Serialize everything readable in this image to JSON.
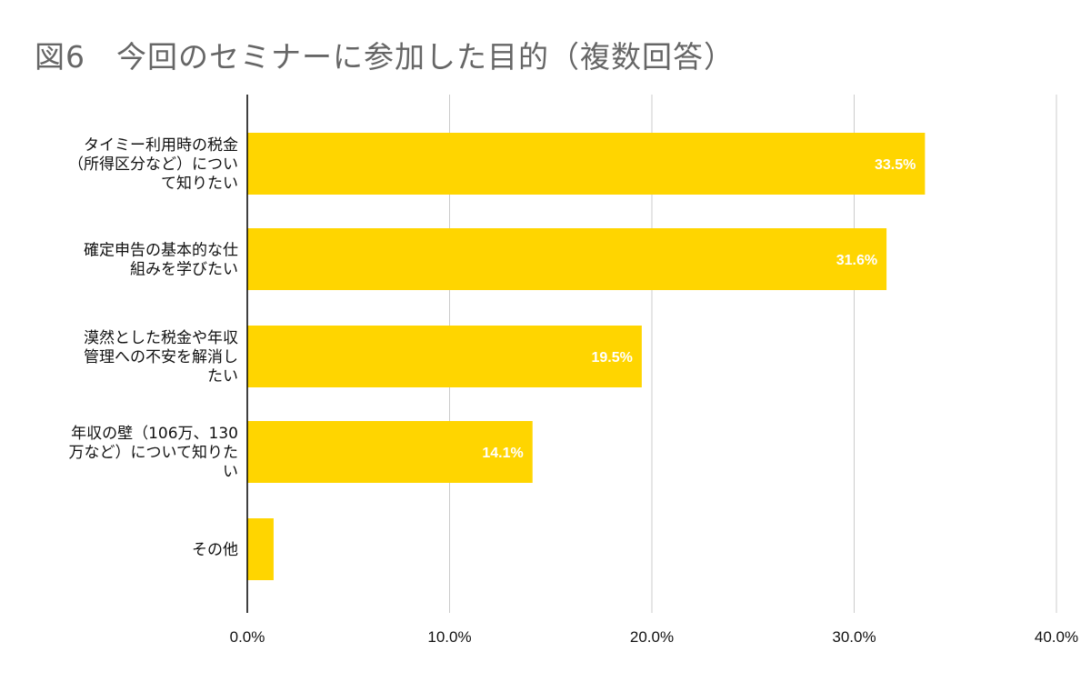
{
  "chart_data": {
    "type": "bar",
    "orientation": "horizontal",
    "title": "図6　今回のセミナーに参加した目的（複数回答）",
    "categories": [
      "タイミー利用時の税金（所得区分など）について知りたい",
      "確定申告の基本的な仕組みを学びたい",
      "漠然とした税金や年収管理への不安を解消したい",
      "年収の壁（106万、130万など）について知りたい",
      "その他"
    ],
    "category_lines": [
      [
        "タイミー利用時の税金",
        "（所得区分など）につい",
        "て知りたい"
      ],
      [
        "確定申告の基本的な仕",
        "組みを学びたい"
      ],
      [
        "漠然とした税金や年収",
        "管理への不安を解消し",
        "たい"
      ],
      [
        "年収の壁（106万、130",
        "万など）について知りた",
        "い"
      ],
      [
        "その他"
      ]
    ],
    "values": [
      33.5,
      31.6,
      19.5,
      14.1,
      1.3
    ],
    "data_labels": [
      "33.5%",
      "31.6%",
      "19.5%",
      "14.1%",
      ""
    ],
    "xlim": [
      0,
      40
    ],
    "x_ticks": [
      0,
      10,
      20,
      30,
      40
    ],
    "x_tick_labels": [
      "0.0%",
      "10.0%",
      "20.0%",
      "30.0%",
      "40.0%"
    ],
    "grid": true,
    "bar_color": "#FFD500",
    "grid_color": "#cccccc",
    "axis_color": "#000000"
  }
}
